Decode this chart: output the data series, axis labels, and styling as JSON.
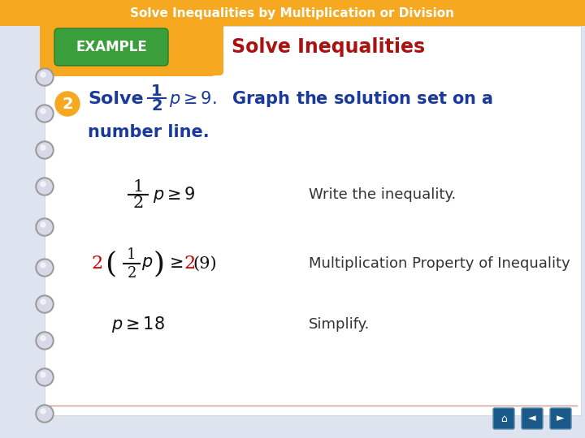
{
  "bg_color": "#dde3ef",
  "paper_color": "#ffffff",
  "header_color": "#f5a820",
  "header_text": "Solve Inequalities by Multiplication or Division",
  "header_text_color": "#ffffff",
  "example_box_color": "#3a9e3a",
  "example_text": "EXAMPLE",
  "example_text_color": "#ffffff",
  "title_text": "Solve Inequalities",
  "title_text_color": "#aa1111",
  "problem_number": "2",
  "problem_number_bg": "#f5a820",
  "problem_intro_color": "#1a3a9a",
  "step1_label": "Write the inequality.",
  "step2_label": "Multiplication Property of Inequality",
  "step3_label": "Simplify.",
  "label_color": "#333333",
  "math_color": "#111111",
  "red_color": "#cc0000",
  "nav_color": "#1a5a8a",
  "line_color": "#cc9999",
  "ring_fill": "#d8d8e8",
  "ring_edge": "#999999",
  "tab_color": "#f5a820"
}
